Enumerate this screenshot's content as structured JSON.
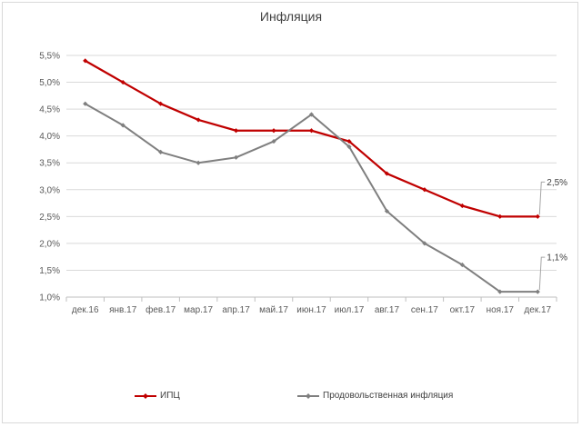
{
  "chart_data": {
    "type": "line",
    "title": "Инфляция",
    "categories": [
      "дек.16",
      "янв.17",
      "фев.17",
      "мар.17",
      "апр.17",
      "май.17",
      "июн.17",
      "июл.17",
      "авг.17",
      "сен.17",
      "окт.17",
      "ноя.17",
      "дек.17"
    ],
    "ylim": [
      0.01,
      0.055
    ],
    "yticks": [
      "1,0%",
      "1,5%",
      "2,0%",
      "2,5%",
      "3,0%",
      "3,5%",
      "4,0%",
      "4,5%",
      "5,0%",
      "5,5%"
    ],
    "grid": true,
    "legend_position": "bottom",
    "series": [
      {
        "name": "ИПЦ",
        "color": "#c00000",
        "values": [
          0.054,
          0.05,
          0.046,
          0.043,
          0.041,
          0.041,
          0.041,
          0.039,
          0.033,
          0.03,
          0.027,
          0.025,
          0.025
        ]
      },
      {
        "name": "Продовольственная инфляция",
        "color": "#7f7f7f",
        "values": [
          0.046,
          0.042,
          0.037,
          0.035,
          0.036,
          0.039,
          0.044,
          0.038,
          0.026,
          0.02,
          0.016,
          0.011,
          0.011
        ]
      }
    ],
    "annotations": [
      {
        "series": 0,
        "text": "2,5%"
      },
      {
        "series": 1,
        "text": "1,1%"
      }
    ]
  }
}
